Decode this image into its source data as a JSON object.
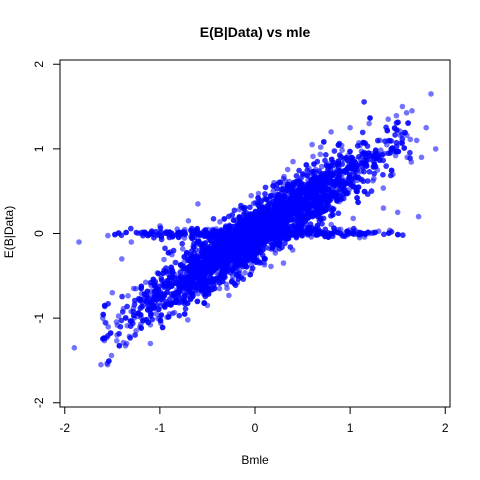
{
  "chart_data": {
    "type": "scatter",
    "title": "E(B|Data) vs mle",
    "xlabel": "Bmle",
    "ylabel": "E(B|Data)",
    "xlim": [
      -2.05,
      2.05
    ],
    "ylim": [
      -2.05,
      2.05
    ],
    "xticks": [
      -2,
      -1,
      0,
      1,
      2
    ],
    "yticks": [
      -2,
      -1,
      0,
      1,
      2
    ],
    "grid": false,
    "legend": "none",
    "point_color": "#0000ff",
    "point_opacity": 0.55,
    "points": [
      [
        -1.9,
        -1.35
      ],
      [
        -1.85,
        -0.1
      ],
      [
        -1.62,
        -1.55
      ],
      [
        -1.55,
        -1.55
      ],
      [
        -1.6,
        -1.0
      ],
      [
        -1.5,
        -0.7
      ],
      [
        -1.4,
        -0.3
      ],
      [
        -1.3,
        -0.1
      ],
      [
        -1.2,
        0.0
      ],
      [
        -1.1,
        0.0
      ],
      [
        -1.0,
        0.0
      ],
      [
        -0.9,
        0.02
      ],
      [
        -0.8,
        0.0
      ],
      [
        -1.45,
        -1.2
      ],
      [
        -1.35,
        -1.3
      ],
      [
        -1.25,
        -1.15
      ],
      [
        -1.1,
        -1.3
      ],
      [
        -1.0,
        -1.0
      ],
      [
        -0.9,
        -0.95
      ],
      [
        -0.5,
        -0.85
      ],
      [
        -0.3,
        -0.6
      ],
      [
        0.8,
        0.0
      ],
      [
        0.9,
        0.05
      ],
      [
        1.0,
        0.0
      ],
      [
        1.1,
        -0.05
      ],
      [
        1.2,
        0.0
      ],
      [
        1.35,
        0.3
      ],
      [
        1.45,
        0.7
      ],
      [
        1.5,
        0.25
      ],
      [
        1.6,
        0.9
      ],
      [
        1.7,
        1.1
      ],
      [
        1.75,
        0.9
      ],
      [
        1.8,
        1.25
      ],
      [
        1.9,
        1.0
      ],
      [
        1.85,
        1.65
      ],
      [
        1.65,
        1.45
      ],
      [
        1.55,
        1.5
      ],
      [
        1.4,
        1.35
      ],
      [
        1.2,
        1.3
      ],
      [
        1.0,
        1.25
      ],
      [
        0.8,
        1.2
      ],
      [
        0.6,
        1.05
      ],
      [
        0.4,
        0.85
      ],
      [
        0.3,
        0.65
      ],
      [
        0.2,
        0.6
      ],
      [
        1.72,
        0.2
      ],
      [
        0.3,
        -0.35
      ],
      [
        -0.1,
        -0.3
      ],
      [
        -0.6,
        0.35
      ],
      [
        -0.7,
        0.15
      ]
    ],
    "density": {
      "n_points": 6000,
      "slope": 0.72,
      "intercept": 0.0,
      "x_sd": 0.6,
      "noise_sd": 0.17,
      "x_range": [
        -1.6,
        1.65
      ],
      "clamp_floor": 0.0,
      "clamp_fraction": 0.12
    }
  }
}
